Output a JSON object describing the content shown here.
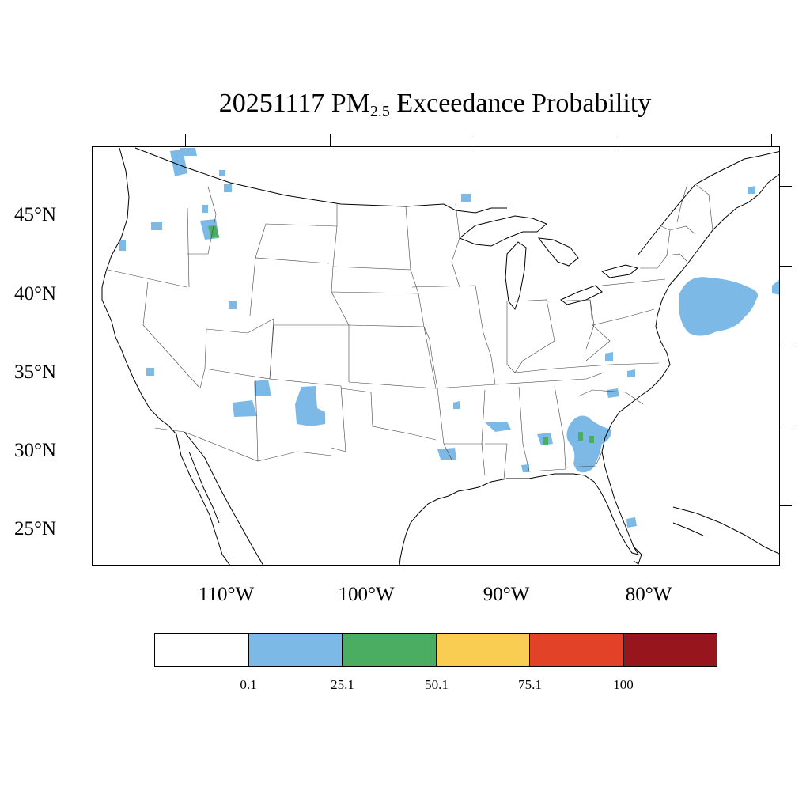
{
  "title": {
    "date": "20251117",
    "species": "PM",
    "subscript": "2.5",
    "suffix": "Exceedance Probability"
  },
  "axes": {
    "latitude_labels": [
      "45°N",
      "40°N",
      "35°N",
      "30°N",
      "25°N"
    ],
    "longitude_labels": [
      "110°W",
      "100°W",
      "90°W",
      "80°W"
    ]
  },
  "colorbar": {
    "colors": [
      "#ffffff",
      "#7cb9e6",
      "#4aad62",
      "#f9cd52",
      "#e24328",
      "#97151c"
    ],
    "labels": [
      "0.1",
      "25.1",
      "50.1",
      "75.1",
      "100"
    ]
  },
  "colors": {
    "coast": "#000000",
    "state_border": "#444444"
  }
}
